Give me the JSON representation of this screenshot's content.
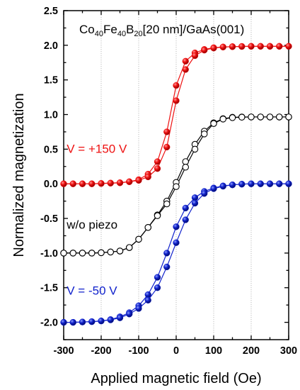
{
  "chart_data": {
    "type": "line",
    "title": {
      "parts": [
        {
          "text": "Co",
          "sub": false
        },
        {
          "text": "40",
          "sub": true
        },
        {
          "text": "Fe",
          "sub": false
        },
        {
          "text": "40",
          "sub": true
        },
        {
          "text": "B",
          "sub": false
        },
        {
          "text": "20",
          "sub": true
        },
        {
          "text": "[20 nm]/GaAs(001)",
          "sub": false
        }
      ]
    },
    "xlabel": "Applied magnetic field (Oe)",
    "ylabel": "Normalized magnetization",
    "xlim": [
      -300,
      300
    ],
    "ylim": [
      -2.25,
      2.5
    ],
    "xticks": [
      -300,
      -200,
      -100,
      0,
      100,
      200,
      300
    ],
    "xtick_labels": [
      "-300",
      "-200",
      "-100",
      "0",
      "100",
      "200",
      "300"
    ],
    "yticks": [
      -2.0,
      -1.5,
      -1.0,
      -0.5,
      0.0,
      0.5,
      1.0,
      1.5,
      2.0,
      2.5
    ],
    "ytick_labels": [
      "-2.0",
      "-1.5",
      "-1.0",
      "-0.5",
      "0.0",
      "0.5",
      "1.0",
      "1.5",
      "2.0",
      "2.5"
    ],
    "grid": "vertical dotted",
    "x": [
      -300,
      -275,
      -250,
      -225,
      -200,
      -175,
      -150,
      -125,
      -100,
      -75,
      -50,
      -25,
      0,
      25,
      50,
      75,
      100,
      125,
      150,
      175,
      200,
      225,
      250,
      275,
      300
    ],
    "series": [
      {
        "label": "V = +150 V",
        "color": "#ee1111",
        "marker": "filled-sphere",
        "branch_down": [
          0.0,
          0.0,
          0.0,
          0.0,
          0.005,
          0.01,
          0.015,
          0.03,
          0.06,
          0.14,
          0.32,
          0.75,
          1.42,
          1.77,
          1.89,
          1.94,
          1.965,
          1.975,
          1.98,
          1.983,
          1.985,
          1.985,
          1.985,
          1.985,
          1.985
        ],
        "branch_up": [
          0.0,
          0.0,
          0.0,
          0.0,
          0.005,
          0.01,
          0.015,
          0.03,
          0.05,
          0.1,
          0.22,
          0.53,
          1.2,
          1.65,
          1.85,
          1.93,
          1.96,
          1.975,
          1.98,
          1.983,
          1.985,
          1.985,
          1.985,
          1.985,
          1.985
        ]
      },
      {
        "label": "w/o piezo",
        "color": "#000000",
        "marker": "open-circle",
        "branch_down": [
          -1.0,
          -1.0,
          -1.0,
          -1.0,
          -0.995,
          -0.985,
          -0.97,
          -0.92,
          -0.8,
          -0.63,
          -0.45,
          -0.25,
          0.02,
          0.32,
          0.57,
          0.76,
          0.88,
          0.94,
          0.96,
          0.965,
          0.965,
          0.965,
          0.965,
          0.965,
          0.965
        ],
        "branch_up": [
          -1.0,
          -1.0,
          -1.0,
          -1.0,
          -0.995,
          -0.985,
          -0.97,
          -0.92,
          -0.8,
          -0.63,
          -0.46,
          -0.29,
          -0.04,
          0.24,
          0.5,
          0.72,
          0.87,
          0.935,
          0.955,
          0.962,
          0.965,
          0.965,
          0.965,
          0.965,
          0.965
        ]
      },
      {
        "label": "V = -50 V",
        "color": "#1122cc",
        "marker": "filled-sphere",
        "branch_down": [
          -2.0,
          -2.0,
          -1.995,
          -1.99,
          -1.98,
          -1.96,
          -1.92,
          -1.86,
          -1.76,
          -1.6,
          -1.35,
          -1.0,
          -0.62,
          -0.35,
          -0.2,
          -0.11,
          -0.06,
          -0.03,
          -0.015,
          -0.005,
          0.0,
          0.0,
          0.0,
          0.0,
          0.0
        ],
        "branch_up": [
          -2.0,
          -2.0,
          -1.995,
          -1.99,
          -1.98,
          -1.965,
          -1.935,
          -1.88,
          -1.8,
          -1.68,
          -1.5,
          -1.2,
          -0.85,
          -0.52,
          -0.28,
          -0.14,
          -0.07,
          -0.035,
          -0.015,
          -0.005,
          0.0,
          0.0,
          0.0,
          0.0,
          0.0
        ]
      }
    ],
    "annotations": [
      {
        "text": "V = +150 V",
        "color": "#ee1111",
        "x": -292,
        "y": 0.45
      },
      {
        "text": "w/o piezo",
        "color": "#000000",
        "x": -292,
        "y": -0.65
      },
      {
        "text": "V = -50 V",
        "color": "#1122cc",
        "x": -292,
        "y": -1.6
      }
    ]
  }
}
